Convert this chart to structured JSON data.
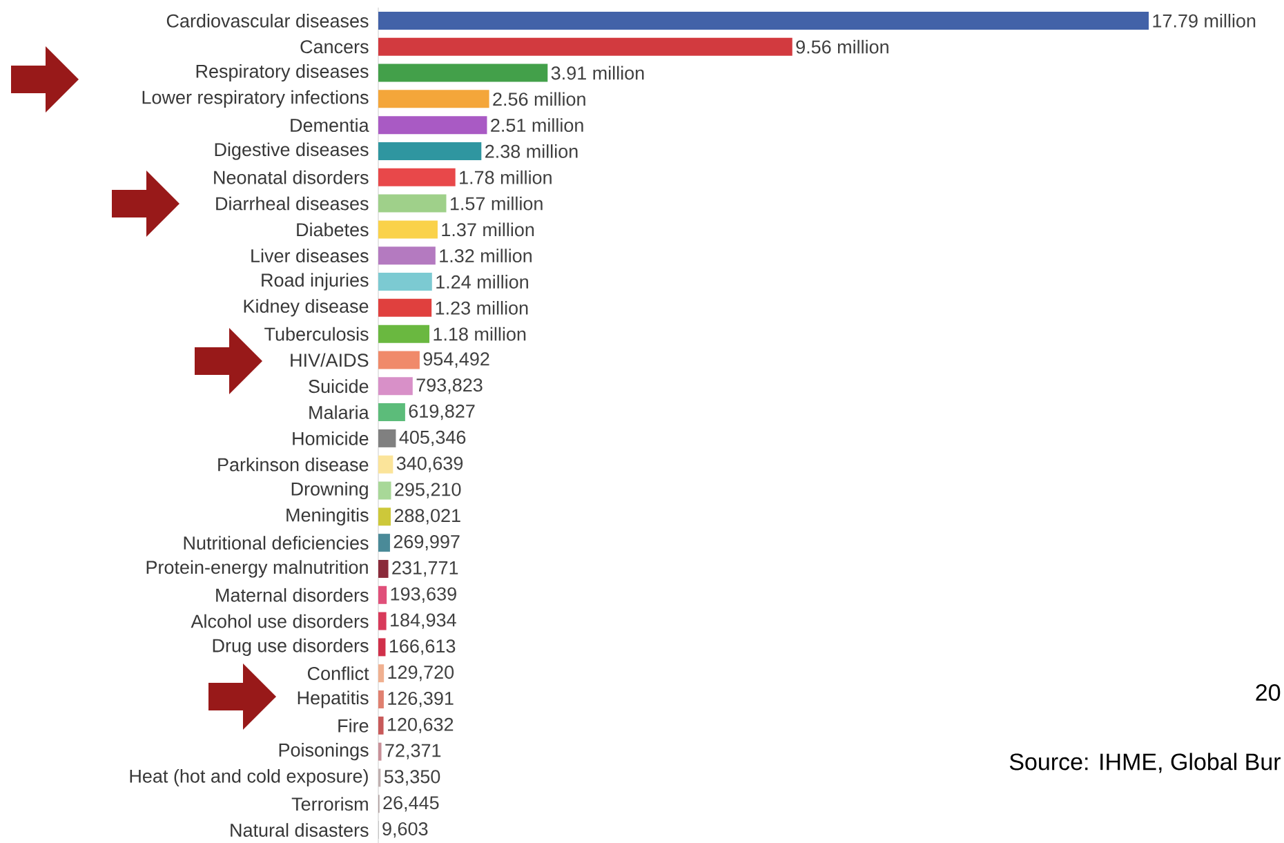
{
  "chart_data": {
    "type": "bar",
    "orientation": "horizontal",
    "categories": [
      "Cardiovascular diseases",
      "Cancers",
      "Respiratory diseases",
      "Lower respiratory infections",
      "Dementia",
      "Digestive diseases",
      "Neonatal disorders",
      "Diarrheal diseases",
      "Diabetes",
      "Liver diseases",
      "Road injuries",
      "Kidney disease",
      "Tuberculosis",
      "HIV/AIDS",
      "Suicide",
      "Malaria",
      "Homicide",
      "Parkinson disease",
      "Drowning",
      "Meningitis",
      "Nutritional deficiencies",
      "Protein-energy malnutrition",
      "Maternal disorders",
      "Alcohol use disorders",
      "Drug use disorders",
      "Conflict",
      "Hepatitis",
      "Fire",
      "Poisonings",
      "Heat (hot and cold exposure)",
      "Terrorism",
      "Natural disasters"
    ],
    "values": [
      17790000,
      9560000,
      3910000,
      2560000,
      2510000,
      2380000,
      1780000,
      1570000,
      1370000,
      1320000,
      1240000,
      1230000,
      1180000,
      954492,
      793823,
      619827,
      405346,
      340639,
      295210,
      288021,
      269997,
      231771,
      193639,
      184934,
      166613,
      129720,
      126391,
      120632,
      72371,
      53350,
      26445,
      9603
    ],
    "value_labels": [
      "17.79 million",
      "9.56 million",
      "3.91 million",
      "2.56 million",
      "2.51 million",
      "2.38 million",
      "1.78 million",
      "1.57 million",
      "1.37 million",
      "1.32 million",
      "1.24 million",
      "1.23 million",
      "1.18 million",
      "954,492",
      "793,823",
      "619,827",
      "405,346",
      "340,639",
      "295,210",
      "288,021",
      "269,997",
      "231,771",
      "193,639",
      "184,934",
      "166,613",
      "129,720",
      "126,391",
      "120,632",
      "72,371",
      "53,350",
      "26,445",
      "9,603"
    ],
    "colors": [
      "#4262a8",
      "#d23a3f",
      "#43a04a",
      "#f4a63a",
      "#a95ac4",
      "#2f96a0",
      "#e8484a",
      "#9fd08a",
      "#fad24a",
      "#b47ac0",
      "#7ccad2",
      "#e0403e",
      "#6ab840",
      "#f08a6a",
      "#d890c8",
      "#5cbc7a",
      "#808080",
      "#fbe49a",
      "#a8d898",
      "#cdc83a",
      "#4a8a98",
      "#8a2a3a",
      "#e0507a",
      "#d83a5a",
      "#d0304a",
      "#f0b090",
      "#e08070",
      "#c85a5a",
      "#c89098",
      "#c0b0b0",
      "#b0a0a0",
      "#b0b0b0"
    ],
    "tick_labels": "y",
    "annotations": [
      "20",
      "Source: IHME, Global Bur"
    ]
  }
}
